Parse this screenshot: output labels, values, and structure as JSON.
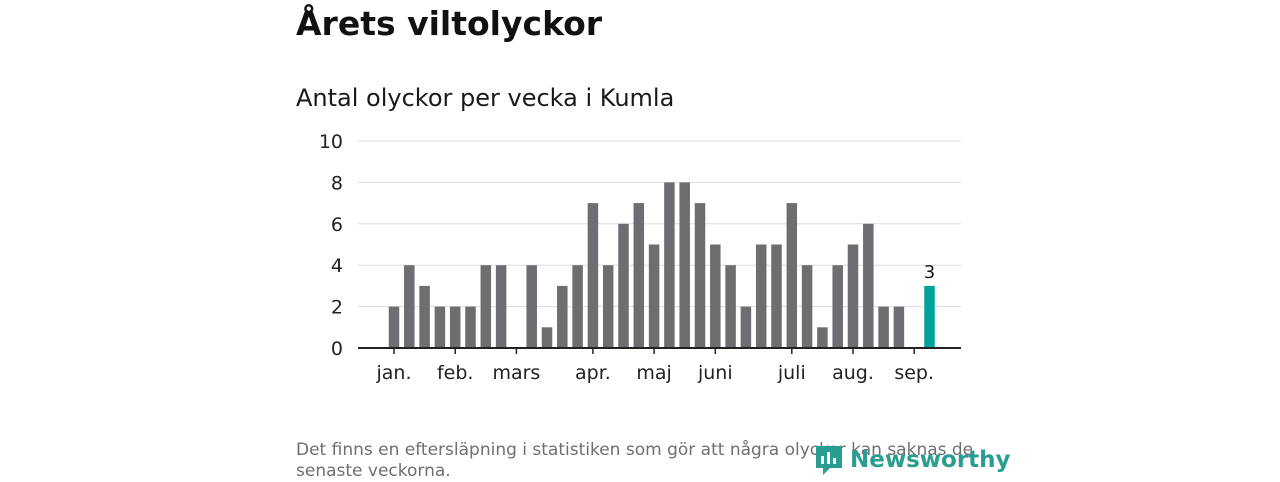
{
  "header": {
    "title": "Årets viltolyckor",
    "subtitle": "Antal olyckor per vecka i Kumla"
  },
  "chart_data": {
    "type": "bar",
    "title": "Antal olyckor per vecka i Kumla",
    "xlabel": "",
    "ylabel": "",
    "ylim": [
      0,
      10
    ],
    "yticks": [
      "0",
      "2",
      "4",
      "6",
      "8",
      "10"
    ],
    "grid": true,
    "month_labels": [
      "jan.",
      "feb.",
      "mars",
      "apr.",
      "maj",
      "juni",
      "juli",
      "aug.",
      "sep."
    ],
    "month_start_week": [
      1,
      5,
      9,
      14,
      18,
      22,
      27,
      31,
      35
    ],
    "weeks": [
      1,
      2,
      3,
      4,
      5,
      6,
      7,
      8,
      9,
      10,
      11,
      12,
      13,
      14,
      15,
      16,
      17,
      18,
      19,
      20,
      21,
      22,
      23,
      24,
      25,
      26,
      27,
      28,
      29,
      30,
      31,
      32,
      33,
      34,
      35,
      36
    ],
    "values": [
      2,
      4,
      3,
      2,
      2,
      2,
      4,
      4,
      0,
      4,
      1,
      3,
      4,
      7,
      4,
      6,
      7,
      5,
      8,
      8,
      7,
      5,
      4,
      2,
      5,
      5,
      7,
      4,
      1,
      4,
      5,
      6,
      2,
      2,
      0,
      3
    ],
    "highlight_index": 35,
    "highlight_label": "3",
    "colors": {
      "bar": "#6e6d72",
      "highlight": "#00a39a",
      "grid": "#dddddd",
      "axis": "#222222"
    }
  },
  "footer": {
    "note": "Det finns en eftersläpning i statistiken som gör att några olyckor kan saknas de senaste veckorna.",
    "brand": "Newsworthy",
    "brand_icon": "newsworthy-logo-icon"
  }
}
